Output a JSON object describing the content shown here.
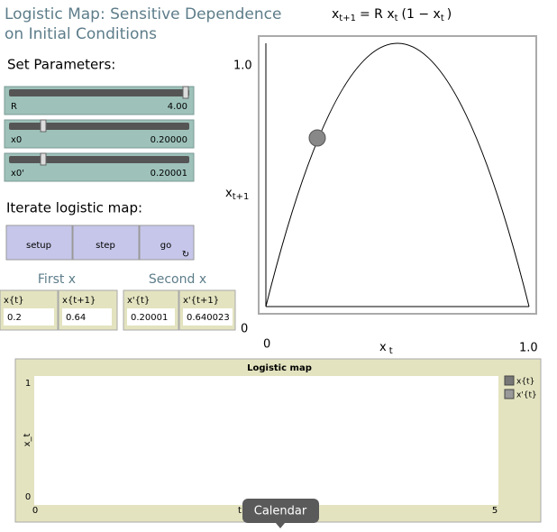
{
  "header": {
    "title_line1": "Logistic Map: Sensitive Dependence",
    "title_line2": "on Initial Conditions"
  },
  "parameters": {
    "heading": "Set Parameters:",
    "sliders": [
      {
        "label": "R",
        "value": "4.00"
      },
      {
        "label": "x0",
        "value": "0.20000"
      },
      {
        "label": "x0'",
        "value": "0.20001"
      }
    ]
  },
  "iterate": {
    "heading": "Iterate logistic map:",
    "buttons": [
      "setup",
      "step",
      "go"
    ]
  },
  "monitors": [
    {
      "heading": "First x",
      "fields": [
        {
          "label": "x{t}",
          "value": "0.2"
        },
        {
          "label": "x{t+1}",
          "value": "0.64"
        }
      ]
    },
    {
      "heading": "Second x",
      "fields": [
        {
          "label": "x'{t}",
          "value": "0.20001"
        },
        {
          "label": "x'{t+1}",
          "value": "0.640023"
        }
      ]
    }
  ],
  "graph": {
    "equation": {
      "lhs": "x",
      "lhs_sub": "t+1",
      "mid": "= R x",
      "mid_sub": "t",
      "rhs": "(1 − x",
      "rhs_sub": "t",
      "end": ")"
    },
    "y_max": "1.0",
    "y_min": "0",
    "y_label": "x",
    "y_label_sub": "t+1",
    "x_min": "0",
    "x_max": "1.0",
    "x_label": "x",
    "x_label_sub": "t"
  },
  "plot": {
    "title": "Logistic map",
    "y_label": "x_t",
    "x_label": "t",
    "y_max": "1",
    "y_min": "0",
    "x_min": "0",
    "x_max": "5",
    "legend": [
      "x{t}",
      "x'{t}"
    ]
  },
  "tooltip": "Calendar"
}
